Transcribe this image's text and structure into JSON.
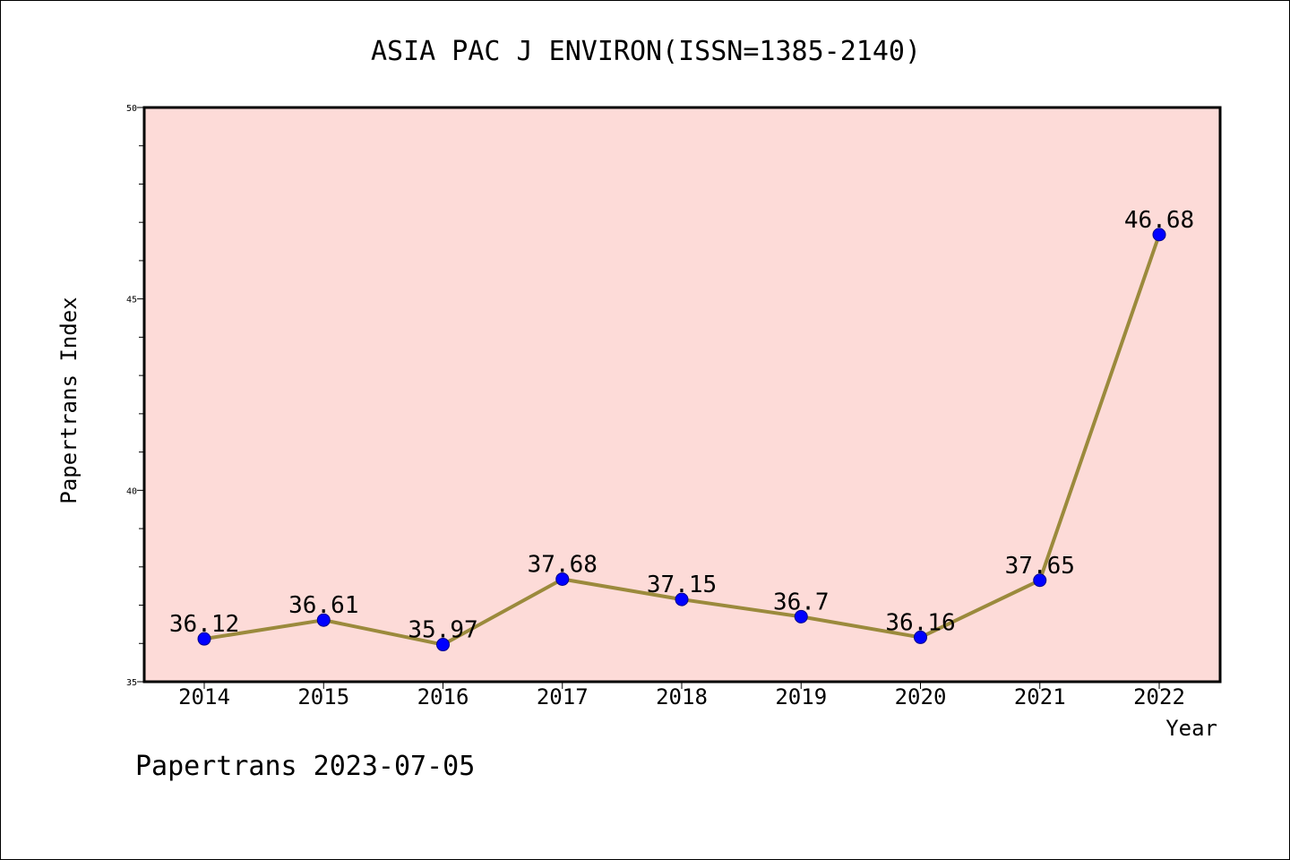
{
  "chart_data": {
    "type": "line",
    "title": "ASIA PAC J ENVIRON(ISSN=1385-2140)",
    "xlabel": "Year",
    "ylabel": "Papertrans Index",
    "x": [
      "2014",
      "2015",
      "2016",
      "2017",
      "2018",
      "2019",
      "2020",
      "2021",
      "2022"
    ],
    "values": [
      36.12,
      36.61,
      35.97,
      37.68,
      37.15,
      36.7,
      36.16,
      37.65,
      46.68
    ],
    "data_labels": [
      "36.12",
      "36.61",
      "35.97",
      "37.68",
      "37.15",
      "36.7",
      "36.16",
      "37.65",
      "46.68"
    ],
    "ylim": [
      35,
      50
    ],
    "y_ticks": [
      35,
      40,
      45,
      50
    ],
    "y_tick_labels": [
      "35",
      "40",
      "45",
      "50"
    ],
    "grid": false,
    "colors": {
      "plot_background": "#fddbd8",
      "line": "#9b8a3c",
      "marker": "#0000ff",
      "marker_edge": "#00008b"
    }
  },
  "footer": {
    "text": "Papertrans 2023-07-05"
  }
}
